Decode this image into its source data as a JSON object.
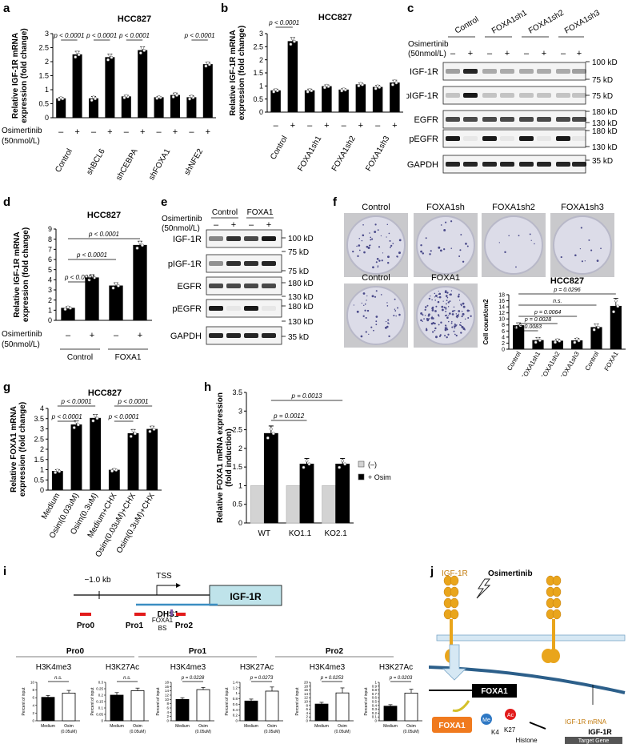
{
  "panel_letters": [
    "a",
    "b",
    "c",
    "d",
    "e",
    "f",
    "g",
    "h",
    "i",
    "j"
  ],
  "common": {
    "osim_label": "Osimertinib",
    "osim_dose": "(50nmol/L)",
    "minus": "–",
    "plus": "+"
  },
  "chart_data": [
    {
      "id": "a",
      "type": "bar",
      "title": "HCC827",
      "ylabel": "Relative IGF-1R mRNA expression (fold change)",
      "ylim": [
        0,
        3
      ],
      "yticks": [
        0,
        0.5,
        1,
        1.5,
        2,
        2.5,
        3
      ],
      "groups": [
        "Control",
        "shBCL6",
        "shCEBPA",
        "shFOXA1",
        "shNFE2"
      ],
      "treatment": [
        "–",
        "+"
      ],
      "values": [
        0.68,
        2.25,
        0.68,
        2.15,
        0.75,
        2.4,
        0.72,
        0.8,
        0.72,
        1.9
      ],
      "errors": [
        0.05,
        0.12,
        0.08,
        0.12,
        0.05,
        0.13,
        0.04,
        0.08,
        0.07,
        0.08
      ],
      "annotations": [
        "p < 0.0001",
        "p < 0.0001",
        "p < 0.0001",
        "p < 0.0001"
      ]
    },
    {
      "id": "b",
      "type": "bar",
      "title": "HCC827",
      "ylabel": "Relative IGF-1R mRNA expression (fold change)",
      "ylim": [
        0,
        3
      ],
      "yticks": [
        0,
        0.5,
        1,
        1.5,
        2,
        2.5,
        3
      ],
      "groups": [
        "Control",
        "FOXA1sh1",
        "FOXA1sh2",
        "FOXA1sh3"
      ],
      "treatment": [
        "–",
        "+"
      ],
      "values": [
        0.82,
        2.7,
        0.82,
        0.98,
        0.85,
        1.05,
        0.95,
        1.12
      ],
      "errors": [
        0.06,
        0.15,
        0.06,
        0.06,
        0.05,
        0.06,
        0.07,
        0.1
      ],
      "annotations": [
        "p < 0.0001"
      ]
    },
    {
      "id": "d",
      "type": "bar",
      "title": "HCC827",
      "ylabel": "Relative IGF-1R mRNA expression (fold change)",
      "ylim": [
        0,
        9
      ],
      "yticks": [
        0,
        1,
        2,
        3,
        4,
        5,
        6,
        7,
        8,
        9
      ],
      "groups": [
        "Control",
        "FOXA1"
      ],
      "treatment": [
        "–",
        "+"
      ],
      "values": [
        1.2,
        4.2,
        3.4,
        7.4
      ],
      "errors": [
        0.15,
        0.3,
        0.3,
        0.4
      ],
      "annotations": [
        "p < 0.0001",
        "p < 0.0001",
        "p < 0.0001"
      ]
    },
    {
      "id": "f",
      "type": "bar",
      "title": "HCC827",
      "ylabel": "Cell count/cm2",
      "ylim": [
        0,
        18
      ],
      "yticks": [
        0,
        2,
        4,
        6,
        8,
        10,
        12,
        14,
        16,
        18
      ],
      "categories": [
        "Control",
        "FOXA1sh1",
        "FOXA1sh2",
        "FOXA1sh3",
        "Control",
        "FOXA1"
      ],
      "values": [
        7.8,
        2.9,
        2.7,
        2.8,
        7.2,
        14.2
      ],
      "errors": [
        0.9,
        0.9,
        0.6,
        0.8,
        1.1,
        2.6
      ],
      "annotations": [
        "p = 0.0296",
        "n.s.",
        "p = 0.0064",
        "p = 0.0028",
        "p = 0.0083"
      ]
    },
    {
      "id": "g",
      "type": "bar",
      "title": "HCC827",
      "ylabel": "Relative FOXA1 mRNA expression (fold change)",
      "ylim": [
        0,
        4
      ],
      "yticks": [
        0,
        0.5,
        1,
        1.5,
        2,
        2.5,
        3,
        3.5,
        4
      ],
      "categories": [
        "Medium",
        "Osim(0.03uM)",
        "Osim(0.3uM)",
        "Medium+CHX",
        "Osim(0.03uM)+CHX",
        "Osim(0.3uM)+CHX"
      ],
      "values": [
        0.92,
        3.2,
        3.52,
        0.98,
        2.77,
        2.98
      ],
      "errors": [
        0.08,
        0.2,
        0.18,
        0.06,
        0.2,
        0.15
      ],
      "annotations": [
        "p < 0.0001",
        "p < 0.0001",
        "p < 0.0001",
        "p < 0.0001"
      ]
    },
    {
      "id": "h",
      "type": "bar",
      "ylabel": "Relative FOXA1 mRNA expression (fold induction)",
      "ylim": [
        0,
        3.5
      ],
      "yticks": [
        0,
        0.5,
        1,
        1.5,
        2,
        2.5,
        3,
        3.5
      ],
      "categories": [
        "WT",
        "KO1.1",
        "KO2.1"
      ],
      "series": [
        {
          "name": "(–)",
          "values": [
            1,
            1,
            1
          ],
          "color": "#d3d3d3"
        },
        {
          "name": "+ Osim",
          "values": [
            2.4,
            1.58,
            1.58
          ],
          "color": "#000000"
        }
      ],
      "errors": [
        0.2,
        0.15,
        0.15
      ],
      "legend": "right",
      "annotations": [
        "p = 0.0013",
        "p = 0.0012"
      ]
    },
    {
      "id": "i-pro0-h3k4me3",
      "type": "bar",
      "title": "H3K4me3",
      "region": "Pro0",
      "ylabel": "Percent of input",
      "ylim": [
        0,
        10
      ],
      "yticks": [
        0,
        2,
        4,
        6,
        8,
        10
      ],
      "categories": [
        "Medium",
        "Osim (0.05uM)"
      ],
      "values": [
        6.1,
        7.2
      ],
      "errors": [
        0.5,
        0.7
      ],
      "annotations": [
        "n.s."
      ]
    },
    {
      "id": "i-pro0-h3k27ac",
      "type": "bar",
      "title": "H3K27Ac",
      "region": "Pro0",
      "ylabel": "Percent of input",
      "ylim": [
        0,
        0.3
      ],
      "yticks": [
        0,
        0.05,
        0.1,
        0.15,
        0.2,
        0.25,
        0.3
      ],
      "categories": [
        "Medium",
        "Osim (0.05uM)"
      ],
      "values": [
        0.2,
        0.235
      ],
      "errors": [
        0.02,
        0.02
      ],
      "annotations": [
        "n.s."
      ]
    },
    {
      "id": "i-pro1-h3k4me3",
      "type": "bar",
      "title": "H3K4me3",
      "region": "Pro1",
      "ylabel": "Percent of input",
      "ylim": [
        0,
        18
      ],
      "yticks": [
        0,
        2,
        4,
        6,
        8,
        10,
        12,
        14,
        16,
        18
      ],
      "categories": [
        "Medium",
        "Osim (0.05uM)"
      ],
      "values": [
        10,
        14.6
      ],
      "errors": [
        0.8,
        1
      ],
      "annotations": [
        "p = 0.0228"
      ]
    },
    {
      "id": "i-pro1-h3k27ac",
      "type": "bar",
      "title": "H3K27Ac",
      "region": "Pro1",
      "ylabel": "Percent of input",
      "ylim": [
        0,
        1.4
      ],
      "yticks": [
        0,
        0.2,
        0.4,
        0.6,
        0.8,
        1,
        1.2,
        1.4
      ],
      "categories": [
        "Medium",
        "Osim (0.05uM)"
      ],
      "values": [
        0.72,
        1.08
      ],
      "errors": [
        0.07,
        0.15
      ],
      "annotations": [
        "p = 0.0273"
      ]
    },
    {
      "id": "i-pro2-h3k4me3",
      "type": "bar",
      "title": "H3K4me3",
      "region": "Pro2",
      "ylabel": "Percent of input",
      "ylim": [
        0,
        20
      ],
      "yticks": [
        0,
        2,
        4,
        6,
        8,
        10,
        12,
        14,
        16,
        18,
        20
      ],
      "categories": [
        "Medium",
        "Osim (0.05uM)"
      ],
      "values": [
        8.7,
        14.5
      ],
      "errors": [
        0.9,
        2.6
      ],
      "annotations": [
        "p = 0.0253"
      ]
    },
    {
      "id": "i-pro2-h3k27ac",
      "type": "bar",
      "title": "H3K27Ac",
      "region": "Pro2",
      "ylabel": "Percent of input",
      "ylim": [
        0,
        1
      ],
      "yticks": [
        0,
        0.1,
        0.2,
        0.3,
        0.4,
        0.5,
        0.6,
        0.7,
        0.8,
        0.9,
        1
      ],
      "categories": [
        "Medium",
        "Osim (0.05uM)"
      ],
      "values": [
        0.38,
        0.72
      ],
      "errors": [
        0.04,
        0.1
      ],
      "annotations": [
        "p = 0.0203"
      ]
    }
  ],
  "blot_c": {
    "header": [
      "Control",
      "FOXA1sh1",
      "FOXA1sh2",
      "FOXA1sh3"
    ],
    "rows": [
      "IGF-1R",
      "pIGF-1R",
      "EGFR",
      "pEGFR",
      "GAPDH"
    ],
    "markers": [
      "100 kD",
      "75 kD",
      "75 kD",
      "180 kD",
      "130 kD",
      "180 kD",
      "130 kD",
      "35 kD"
    ]
  },
  "blot_e": {
    "header": [
      "Control",
      "FOXA1"
    ],
    "rows": [
      "IGF-1R",
      "pIGF-1R",
      "EGFR",
      "pEGFR",
      "GAPDH"
    ],
    "markers": [
      "100 kD",
      "75 kD",
      "75 kD",
      "180 kD",
      "130 kD",
      "180 kD",
      "130 kD",
      "35 kD"
    ]
  },
  "colony_f": {
    "labels": [
      "Control",
      "FOXA1sh",
      "FOXA1sh2",
      "FOXA1sh3",
      "Control",
      "FOXA1"
    ]
  },
  "diagram_i": {
    "kb": "−1.0 kb",
    "tss": "TSS",
    "gene": "IGF-1R",
    "dhs": "DHS1",
    "pro0": "Pro0",
    "pro1": "Pro1",
    "pro2": "Pro2",
    "foxa1": "FOXA1",
    "bs": "BS"
  },
  "diagram_j": {
    "igf1r": "IGF-1R",
    "osimertinib": "Osimertinib",
    "foxa1_gene": "FOXA1",
    "foxa1_protein": "FOXA1",
    "me": "Me",
    "ac": "Ac",
    "k4": "K4",
    "k27": "K27",
    "mrna": "IGF-1R mRNA",
    "target": "Target Gene",
    "histone": "Histone",
    "gene": "IGF-1R"
  }
}
